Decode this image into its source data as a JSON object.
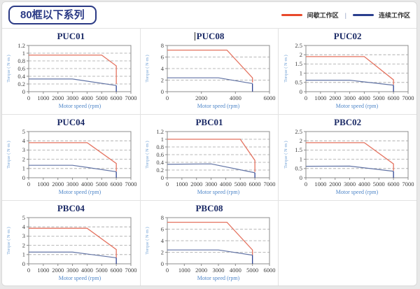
{
  "header": {
    "series_badge": "80框以下系列"
  },
  "legend": {
    "separator": "|",
    "items": [
      {
        "label": "间歇工作区",
        "color": "#e8492b"
      },
      {
        "label": "连续工作区",
        "color": "#2a3f8e"
      }
    ]
  },
  "palette": {
    "red_line": "#e4725f",
    "blue_line": "#6274a5",
    "blue_drop": "#2f4392",
    "frame": "#8c8c8c",
    "gridline": "#a3a3a3",
    "tick_text": "#3c3c3c",
    "title_color": "#1b2a66",
    "xlabel_color": "#4f86c8",
    "ylabel_color": "#74a3d6"
  },
  "chart_data": [
    {
      "type": "line",
      "title": "PUC01",
      "xlabel": "Motor speed (rpm)",
      "ylabel": "Torque ( N·m )",
      "xlim": [
        0,
        7000
      ],
      "xticks": [
        0,
        1000,
        2000,
        3000,
        4000,
        5000,
        6000,
        7000
      ],
      "ylim": [
        0,
        1.2
      ],
      "yticks": [
        0,
        0.2,
        0.4,
        0.6,
        0.8,
        1,
        1.2
      ],
      "grid": "horizontal-dashed",
      "legend_position": "none",
      "series": [
        {
          "name": "间歇工作区",
          "color": "red",
          "points": [
            [
              0,
              0.95
            ],
            [
              5000,
              0.95
            ],
            [
              6000,
              0.67
            ],
            [
              6000,
              0.2
            ]
          ]
        },
        {
          "name": "连续工作区",
          "color": "blue",
          "points": [
            [
              0,
              0.33
            ],
            [
              3000,
              0.33
            ],
            [
              6000,
              0.16
            ],
            [
              6000,
              0
            ]
          ]
        }
      ]
    },
    {
      "type": "line",
      "title": "PUC08",
      "caret": true,
      "xlabel": "Motor speed (rpm)",
      "ylabel": "Torque ( N·m )",
      "xlim": [
        0,
        6000
      ],
      "xticks": [
        0,
        2000,
        4000,
        6000
      ],
      "ylim": [
        0,
        8
      ],
      "yticks": [
        0,
        2,
        4,
        6,
        8
      ],
      "grid": "horizontal-dashed",
      "legend_position": "none",
      "series": [
        {
          "name": "间歇工作区",
          "color": "red",
          "points": [
            [
              0,
              7.2
            ],
            [
              3500,
              7.2
            ],
            [
              5000,
              2.4
            ],
            [
              5000,
              1.6
            ]
          ]
        },
        {
          "name": "连续工作区",
          "color": "blue",
          "points": [
            [
              0,
              2.4
            ],
            [
              3000,
              2.4
            ],
            [
              5000,
              1.4
            ],
            [
              5000,
              0
            ]
          ]
        }
      ]
    },
    {
      "type": "line",
      "title": "PUC02",
      "xlabel": "Motor speed (rpm)",
      "ylabel": "Torque ( N·m )",
      "xlim": [
        0,
        7000
      ],
      "xticks": [
        0,
        1000,
        2000,
        3000,
        4000,
        5000,
        6000,
        7000
      ],
      "ylim": [
        0,
        2.5
      ],
      "yticks": [
        0,
        0.5,
        1,
        1.5,
        2,
        2.5
      ],
      "grid": "horizontal-dashed",
      "legend_position": "none",
      "series": [
        {
          "name": "间歇工作区",
          "color": "red",
          "points": [
            [
              0,
              1.9
            ],
            [
              4000,
              1.9
            ],
            [
              6000,
              0.64
            ],
            [
              6000,
              0.38
            ]
          ]
        },
        {
          "name": "连续工作区",
          "color": "blue",
          "points": [
            [
              0,
              0.62
            ],
            [
              3000,
              0.62
            ],
            [
              6000,
              0.35
            ],
            [
              6000,
              0
            ]
          ]
        }
      ]
    },
    {
      "type": "line",
      "title": "PUC04",
      "xlabel": "Motor speed (rpm)",
      "ylabel": "Torque ( N·m )",
      "xlim": [
        0,
        7000
      ],
      "xticks": [
        0,
        1000,
        2000,
        3000,
        4000,
        5000,
        6000,
        7000
      ],
      "ylim": [
        0,
        5
      ],
      "yticks": [
        0,
        1,
        2,
        3,
        4,
        5
      ],
      "grid": "horizontal-dashed",
      "legend_position": "none",
      "series": [
        {
          "name": "间歇工作区",
          "color": "red",
          "points": [
            [
              0,
              3.8
            ],
            [
              4000,
              3.8
            ],
            [
              6000,
              1.55
            ],
            [
              6000,
              0.7
            ]
          ]
        },
        {
          "name": "连续工作区",
          "color": "blue",
          "points": [
            [
              0,
              1.35
            ],
            [
              3000,
              1.35
            ],
            [
              6000,
              0.65
            ],
            [
              6000,
              0
            ]
          ]
        }
      ]
    },
    {
      "type": "line",
      "title": "PBC01",
      "xlabel": "Motor speed (rpm)",
      "ylabel": "Torque ( N·m )",
      "xlim": [
        0,
        7000
      ],
      "xticks": [
        0,
        1000,
        2000,
        3000,
        4000,
        5000,
        6000,
        7000
      ],
      "ylim": [
        0,
        1.2
      ],
      "yticks": [
        0,
        0.2,
        0.4,
        0.6,
        0.8,
        1,
        1.2
      ],
      "grid": "horizontal-dashed",
      "legend_position": "none",
      "series": [
        {
          "name": "间歇工作区",
          "color": "red",
          "points": [
            [
              0,
              1.0
            ],
            [
              5000,
              1.0
            ],
            [
              6000,
              0.45
            ],
            [
              6000,
              0.15
            ]
          ]
        },
        {
          "name": "连续工作区",
          "color": "blue",
          "points": [
            [
              0,
              0.35
            ],
            [
              3000,
              0.36
            ],
            [
              6000,
              0.13
            ],
            [
              6000,
              0
            ]
          ]
        }
      ]
    },
    {
      "type": "line",
      "title": "PBC02",
      "xlabel": "Motor speed (rpm)",
      "ylabel": "Torque ( N·m )",
      "xlim": [
        0,
        7000
      ],
      "xticks": [
        0,
        1000,
        2000,
        3000,
        4000,
        5000,
        6000,
        7000
      ],
      "ylim": [
        0,
        2.5
      ],
      "yticks": [
        0,
        0.5,
        1,
        1.5,
        2,
        2.5
      ],
      "grid": "horizontal-dashed",
      "legend_position": "none",
      "series": [
        {
          "name": "间歇工作区",
          "color": "red",
          "points": [
            [
              0,
              1.9
            ],
            [
              4000,
              1.9
            ],
            [
              6000,
              0.75
            ],
            [
              6000,
              0.38
            ]
          ]
        },
        {
          "name": "连续工作区",
          "color": "blue",
          "points": [
            [
              0,
              0.62
            ],
            [
              3000,
              0.63
            ],
            [
              6000,
              0.35
            ],
            [
              6000,
              0
            ]
          ]
        }
      ]
    },
    {
      "type": "line",
      "title": "PBC04",
      "xlabel": "Motor speed (rpm)",
      "ylabel": "Torque ( N·m )",
      "xlim": [
        0,
        7000
      ],
      "xticks": [
        0,
        1000,
        2000,
        3000,
        4000,
        5000,
        6000,
        7000
      ],
      "ylim": [
        0,
        5
      ],
      "yticks": [
        0,
        1,
        2,
        3,
        4,
        5
      ],
      "grid": "horizontal-dashed",
      "legend_position": "none",
      "series": [
        {
          "name": "间歇工作区",
          "color": "red",
          "points": [
            [
              0,
              3.85
            ],
            [
              4000,
              3.85
            ],
            [
              6000,
              1.55
            ],
            [
              6000,
              0.65
            ]
          ]
        },
        {
          "name": "连续工作区",
          "color": "blue",
          "points": [
            [
              0,
              1.27
            ],
            [
              3000,
              1.27
            ],
            [
              6000,
              0.65
            ],
            [
              6000,
              0
            ]
          ]
        }
      ]
    },
    {
      "type": "line",
      "title": "PBC08",
      "xlabel": "Motor speed (rpm)",
      "ylabel": "Torque ( N·m )",
      "xlim": [
        0,
        6000
      ],
      "xticks": [
        0,
        1000,
        2000,
        3000,
        4000,
        5000,
        6000
      ],
      "ylim": [
        0,
        8
      ],
      "yticks": [
        0,
        2,
        4,
        6,
        8
      ],
      "grid": "horizontal-dashed",
      "legend_position": "none",
      "series": [
        {
          "name": "间歇工作区",
          "color": "red",
          "points": [
            [
              0,
              7.2
            ],
            [
              3500,
              7.2
            ],
            [
              5000,
              2.4
            ],
            [
              5000,
              1.5
            ]
          ]
        },
        {
          "name": "连续工作区",
          "color": "blue",
          "points": [
            [
              0,
              2.4
            ],
            [
              3000,
              2.4
            ],
            [
              5000,
              1.5
            ],
            [
              5000,
              0
            ]
          ]
        }
      ]
    }
  ]
}
